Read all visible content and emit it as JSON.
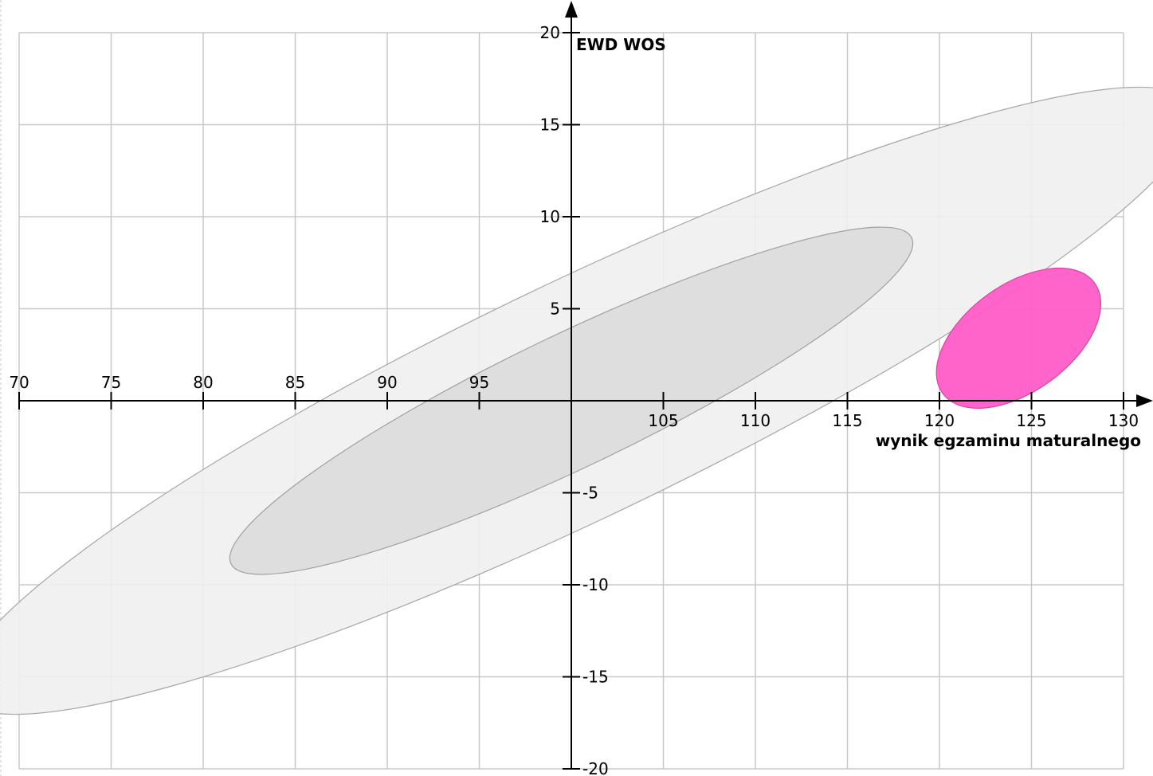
{
  "chart_data": {
    "type": "scatter",
    "title": "",
    "xlabel": "wynik egzaminu maturalnego",
    "ylabel": "EWD WOS",
    "xlim": [
      70,
      130
    ],
    "ylim": [
      -20,
      20
    ],
    "x_ticks": [
      70,
      75,
      80,
      85,
      90,
      95,
      105,
      110,
      115,
      120,
      125,
      130
    ],
    "y_ticks": [
      20,
      15,
      10,
      5,
      -5,
      -10,
      -15,
      -20
    ],
    "origin": [
      100,
      0
    ],
    "grid": true,
    "ellipses": [
      {
        "role": "outer-range",
        "center": [
          100.3,
          0.0
        ],
        "semi_axes": [
          37.1,
          6.4
        ],
        "angle_deg": 25.6,
        "fill": "#efefef",
        "stroke": "#a6a6a6"
      },
      {
        "role": "inner-range",
        "center": [
          100.0,
          0.0
        ],
        "semi_axes": [
          20.5,
          3.6
        ],
        "angle_deg": 25.6,
        "fill": "#dcdcdc",
        "stroke": "#a0a0a0"
      },
      {
        "role": "highlight",
        "center": [
          124.3,
          3.4
        ],
        "semi_axes": [
          5.1,
          2.9
        ],
        "angle_deg": 36.0,
        "fill": "#ff5cc8",
        "stroke": "#d8449e"
      }
    ]
  }
}
